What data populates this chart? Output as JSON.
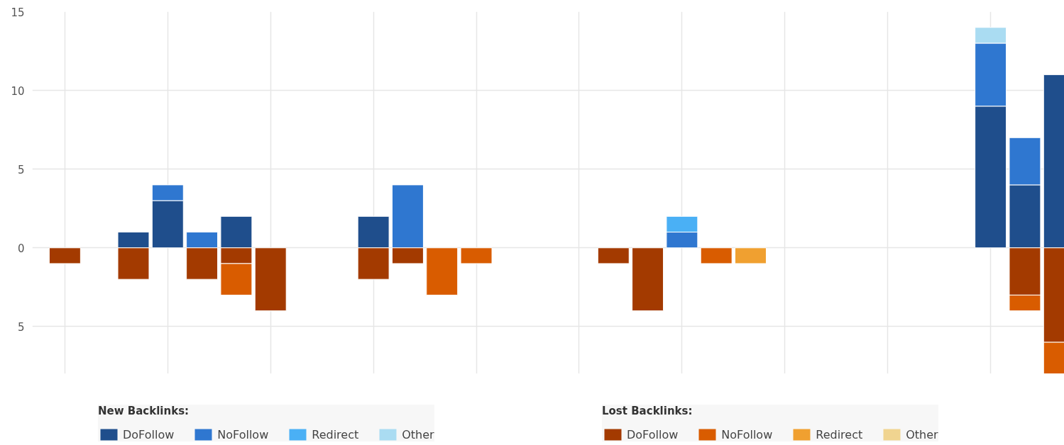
{
  "chart_data": {
    "type": "bar",
    "stacked": true,
    "categories": [
      null,
      null,
      null,
      null,
      null,
      null,
      null,
      null,
      null,
      null,
      null,
      null,
      null,
      null,
      null,
      null,
      null,
      null,
      null,
      null,
      null,
      null,
      null,
      null,
      null,
      null,
      null,
      null,
      null,
      null
    ],
    "series": [
      {
        "name": "DoFollow",
        "color": "#1f4e8c",
        "values": [
          null,
          null,
          1,
          3,
          null,
          2,
          null,
          null,
          null,
          2,
          null,
          null,
          null,
          null,
          null,
          null,
          null,
          null,
          null,
          null,
          null,
          null,
          null,
          null,
          null,
          null,
          null,
          9,
          4,
          11
        ]
      },
      {
        "name": "NoFollow",
        "color": "#2f77d0",
        "values": [
          null,
          null,
          null,
          1,
          1,
          null,
          null,
          null,
          null,
          null,
          4,
          null,
          null,
          null,
          null,
          null,
          null,
          null,
          1,
          null,
          null,
          null,
          null,
          null,
          null,
          null,
          null,
          4,
          3,
          null
        ]
      },
      {
        "name": "Redirect",
        "color": "#4ab0f5",
        "values": [
          null,
          null,
          null,
          null,
          null,
          null,
          null,
          null,
          null,
          null,
          null,
          null,
          null,
          null,
          null,
          null,
          null,
          null,
          1,
          null,
          null,
          null,
          null,
          null,
          null,
          null,
          null,
          null,
          null,
          null
        ]
      },
      {
        "name": "Other",
        "color": "#aadcf2",
        "values": [
          null,
          null,
          null,
          null,
          null,
          null,
          null,
          null,
          null,
          null,
          null,
          null,
          null,
          null,
          null,
          null,
          null,
          null,
          null,
          null,
          null,
          null,
          null,
          null,
          null,
          null,
          null,
          1,
          null,
          null
        ]
      },
      {
        "name": "DoFollow",
        "color": "#a33a00",
        "values": [
          -1,
          null,
          -2,
          null,
          -2,
          -1,
          -4,
          null,
          null,
          -2,
          -1,
          null,
          null,
          null,
          null,
          null,
          -1,
          -4,
          null,
          null,
          null,
          null,
          null,
          null,
          null,
          null,
          null,
          null,
          -3,
          -6
        ]
      },
      {
        "name": "NoFollow",
        "color": "#d95c00",
        "values": [
          null,
          null,
          null,
          null,
          null,
          -2,
          null,
          null,
          null,
          null,
          null,
          -3,
          -1,
          null,
          null,
          null,
          null,
          null,
          null,
          -1,
          null,
          null,
          null,
          null,
          null,
          null,
          null,
          null,
          -1,
          -2
        ]
      },
      {
        "name": "Redirect",
        "color": "#f0a030",
        "values": [
          null,
          null,
          null,
          null,
          null,
          null,
          null,
          null,
          null,
          null,
          null,
          null,
          null,
          null,
          null,
          null,
          null,
          null,
          null,
          null,
          -1,
          null,
          null,
          null,
          null,
          null,
          null,
          null,
          null,
          null
        ]
      },
      {
        "name": "Other",
        "color": "#f0d490",
        "values": [
          null,
          null,
          null,
          null,
          null,
          null,
          null,
          null,
          null,
          null,
          null,
          null,
          null,
          null,
          null,
          null,
          null,
          null,
          null,
          null,
          null,
          null,
          null,
          null,
          null,
          null,
          null,
          null,
          null,
          null
        ]
      }
    ],
    "ylim": [
      -8,
      15
    ],
    "yticks": [
      15,
      10,
      5,
      0,
      {
        "value": -5,
        "label": "5"
      }
    ],
    "grid": true,
    "legend": "bottom",
    "tick_labels": "y",
    "annotations": [
      "New Backlinks:",
      "Lost Backlinks:"
    ]
  }
}
